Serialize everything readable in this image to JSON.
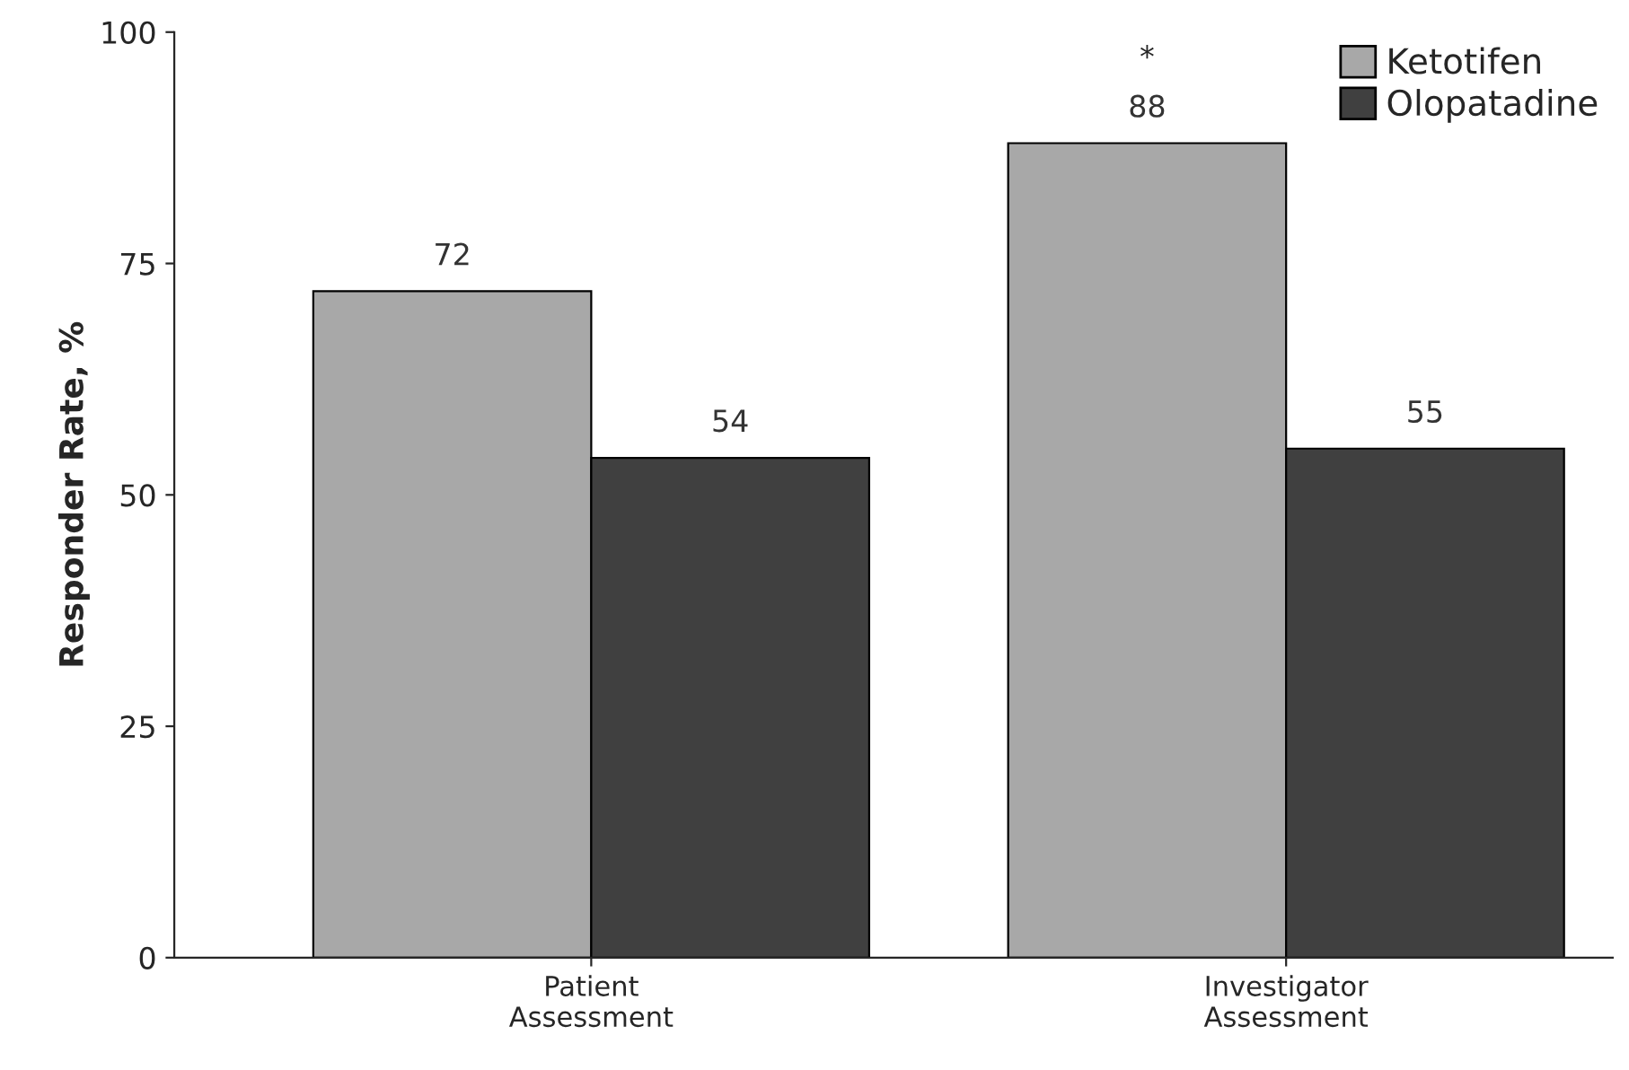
{
  "chart_data": {
    "type": "bar",
    "ylabel": "Responder Rate, %",
    "categories": [
      "Patient\nAssessment",
      "Investigator\nAssessment"
    ],
    "series": [
      {
        "name": "Ketotifen",
        "color": "#a8a8a8",
        "values": [
          72,
          88
        ]
      },
      {
        "name": "Olopatadine",
        "color": "#404040",
        "values": [
          54,
          55
        ]
      }
    ],
    "ylim": [
      0,
      100
    ],
    "yticks": [
      0,
      25,
      50,
      75,
      100
    ],
    "data_labels": true,
    "legend": "top right",
    "grid": false,
    "annotations": [
      "*"
    ]
  }
}
